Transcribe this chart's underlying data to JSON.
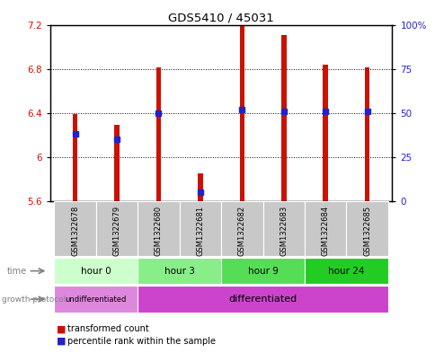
{
  "title": "GDS5410 / 45031",
  "samples": [
    "GSM1322678",
    "GSM1322679",
    "GSM1322680",
    "GSM1322681",
    "GSM1322682",
    "GSM1322683",
    "GSM1322684",
    "GSM1322685"
  ],
  "transformed_count": [
    6.39,
    6.29,
    6.81,
    5.85,
    7.19,
    7.11,
    6.84,
    6.81
  ],
  "percentile_rank": [
    38,
    35,
    50,
    5,
    52,
    51,
    51,
    51
  ],
  "ylim_left": [
    5.6,
    7.2
  ],
  "ylim_right": [
    0,
    100
  ],
  "yticks_left": [
    5.6,
    6.0,
    6.4,
    6.8,
    7.2
  ],
  "ytick_labels_left": [
    "5.6",
    "6",
    "6.4",
    "6.8",
    "7.2"
  ],
  "ytick_labels_right": [
    "0",
    "25",
    "50",
    "75",
    "100%"
  ],
  "yticks_right": [
    0,
    25,
    50,
    75,
    100
  ],
  "bar_bottom": 5.6,
  "bar_color": "#cc1100",
  "percentile_color": "#2222cc",
  "time_colors": [
    "#ccffcc",
    "#88ee88",
    "#55dd55",
    "#22cc22"
  ],
  "time_labels": [
    "hour 0",
    "hour 3",
    "hour 9",
    "hour 24"
  ],
  "undiff_color": "#dd88dd",
  "diff_color": "#cc44cc",
  "sample_bg_color": "#c8c8c8",
  "bar_width": 0.12,
  "percentile_marker_size": 4.5,
  "figsize": [
    4.85,
    3.93
  ],
  "dpi": 100
}
